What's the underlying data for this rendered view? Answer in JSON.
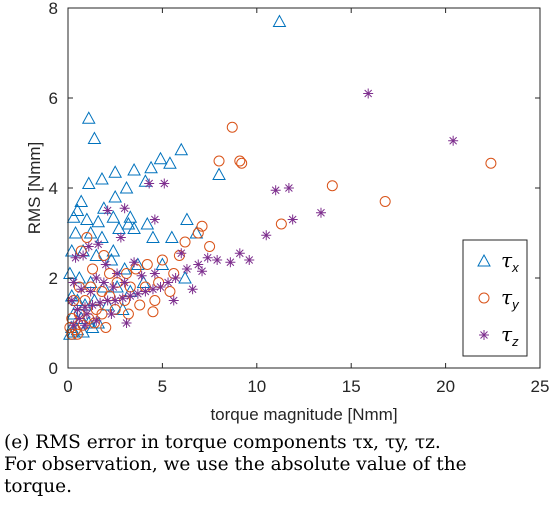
{
  "chart_data": {
    "type": "scatter",
    "xlabel": "torque magnitude [Nmm]",
    "ylabel": "RMS [Nmm]",
    "xlim": [
      0,
      25
    ],
    "ylim": [
      0,
      8
    ],
    "xticks": [
      "0",
      "5",
      "10",
      "15",
      "20",
      "25"
    ],
    "yticks": [
      "0",
      "2",
      "4",
      "6",
      "8"
    ],
    "grid": false,
    "legend_position": "bottom-right",
    "series": [
      {
        "name": "τx",
        "base": "τ",
        "sub": "x",
        "marker": "triangle",
        "color": "#0072BD",
        "points": [
          [
            11.2,
            7.7
          ],
          [
            1.1,
            5.55
          ],
          [
            1.4,
            5.1
          ],
          [
            4.9,
            4.65
          ],
          [
            6.0,
            4.85
          ],
          [
            5.4,
            4.55
          ],
          [
            4.4,
            4.45
          ],
          [
            3.5,
            4.4
          ],
          [
            2.5,
            4.35
          ],
          [
            1.8,
            4.2
          ],
          [
            1.1,
            4.1
          ],
          [
            0.7,
            3.7
          ],
          [
            0.5,
            3.5
          ],
          [
            2.5,
            3.8
          ],
          [
            3.1,
            4.0
          ],
          [
            4.1,
            4.15
          ],
          [
            8.0,
            4.3
          ],
          [
            0.3,
            3.35
          ],
          [
            1.0,
            3.3
          ],
          [
            1.6,
            3.25
          ],
          [
            1.9,
            3.55
          ],
          [
            2.4,
            3.35
          ],
          [
            3.3,
            3.35
          ],
          [
            4.2,
            3.2
          ],
          [
            6.3,
            3.3
          ],
          [
            0.4,
            3.0
          ],
          [
            1.2,
            3.0
          ],
          [
            1.8,
            2.9
          ],
          [
            2.7,
            3.1
          ],
          [
            3.5,
            3.1
          ],
          [
            3.2,
            3.2
          ],
          [
            4.5,
            2.9
          ],
          [
            5.5,
            2.9
          ],
          [
            6.8,
            3.0
          ],
          [
            0.2,
            2.6
          ],
          [
            0.8,
            2.6
          ],
          [
            1.5,
            2.5
          ],
          [
            2.3,
            2.4
          ],
          [
            3.0,
            2.2
          ],
          [
            2.4,
            2.6
          ],
          [
            3.7,
            2.3
          ],
          [
            5.0,
            2.3
          ],
          [
            6.2,
            2.0
          ],
          [
            0.1,
            2.1
          ],
          [
            0.6,
            2.0
          ],
          [
            1.2,
            1.9
          ],
          [
            1.9,
            1.8
          ],
          [
            2.6,
            1.8
          ],
          [
            3.3,
            1.7
          ],
          [
            4.0,
            1.9
          ],
          [
            0.2,
            1.6
          ],
          [
            0.5,
            1.5
          ],
          [
            0.9,
            1.4
          ],
          [
            1.4,
            1.5
          ],
          [
            2.1,
            1.4
          ],
          [
            2.9,
            1.3
          ],
          [
            0.3,
            1.2
          ],
          [
            0.7,
            1.1
          ],
          [
            1.1,
            1.0
          ],
          [
            1.6,
            1.0
          ],
          [
            0.2,
            0.9
          ],
          [
            0.5,
            0.85
          ],
          [
            0.1,
            0.75
          ],
          [
            0.3,
            0.8
          ],
          [
            0.8,
            0.8
          ],
          [
            1.3,
            0.9
          ]
        ]
      },
      {
        "name": "τy",
        "base": "τ",
        "sub": "y",
        "marker": "circle",
        "color": "#D95319",
        "points": [
          [
            22.4,
            4.55
          ],
          [
            8.7,
            5.35
          ],
          [
            9.1,
            4.6
          ],
          [
            9.2,
            4.55
          ],
          [
            8.0,
            4.6
          ],
          [
            14.0,
            4.05
          ],
          [
            16.8,
            3.7
          ],
          [
            11.3,
            3.2
          ],
          [
            7.1,
            3.15
          ],
          [
            6.9,
            3.0
          ],
          [
            7.5,
            2.7
          ],
          [
            6.2,
            2.8
          ],
          [
            5.9,
            2.5
          ],
          [
            5.0,
            2.4
          ],
          [
            4.2,
            2.3
          ],
          [
            3.6,
            2.2
          ],
          [
            3.1,
            2.1
          ],
          [
            2.2,
            2.1
          ],
          [
            1.3,
            2.2
          ],
          [
            1.0,
            2.9
          ],
          [
            0.7,
            2.6
          ],
          [
            1.9,
            2.5
          ],
          [
            5.6,
            2.1
          ],
          [
            4.8,
            1.9
          ],
          [
            4.1,
            1.8
          ],
          [
            3.3,
            1.8
          ],
          [
            2.6,
            1.9
          ],
          [
            1.8,
            1.7
          ],
          [
            1.2,
            1.8
          ],
          [
            0.6,
            1.8
          ],
          [
            0.3,
            1.5
          ],
          [
            0.9,
            1.5
          ],
          [
            1.5,
            1.3
          ],
          [
            2.2,
            1.6
          ],
          [
            3.0,
            1.5
          ],
          [
            3.8,
            1.4
          ],
          [
            4.6,
            1.5
          ],
          [
            5.4,
            1.7
          ],
          [
            0.2,
            1.1
          ],
          [
            0.6,
            1.2
          ],
          [
            1.1,
            1.1
          ],
          [
            1.8,
            1.2
          ],
          [
            2.5,
            1.3
          ],
          [
            3.2,
            1.2
          ],
          [
            4.5,
            1.25
          ],
          [
            0.1,
            0.9
          ],
          [
            0.4,
            0.85
          ],
          [
            0.8,
            0.95
          ],
          [
            1.4,
            1.0
          ],
          [
            2.0,
            0.9
          ],
          [
            0.2,
            0.75
          ],
          [
            0.5,
            0.75
          ]
        ]
      },
      {
        "name": "τz",
        "base": "τ",
        "sub": "z",
        "marker": "asterisk",
        "color": "#7E2F8E",
        "points": [
          [
            15.9,
            6.1
          ],
          [
            20.4,
            5.05
          ],
          [
            11.0,
            3.95
          ],
          [
            11.7,
            4.0
          ],
          [
            13.4,
            3.45
          ],
          [
            11.9,
            3.3
          ],
          [
            10.5,
            2.95
          ],
          [
            9.1,
            2.55
          ],
          [
            9.6,
            2.4
          ],
          [
            8.6,
            2.35
          ],
          [
            7.9,
            2.4
          ],
          [
            7.4,
            2.45
          ],
          [
            6.9,
            2.3
          ],
          [
            6.3,
            2.2
          ],
          [
            5.7,
            2.0
          ],
          [
            5.3,
            1.9
          ],
          [
            4.9,
            1.8
          ],
          [
            4.5,
            1.75
          ],
          [
            4.1,
            1.7
          ],
          [
            3.7,
            1.65
          ],
          [
            3.3,
            1.6
          ],
          [
            2.9,
            1.55
          ],
          [
            2.5,
            1.5
          ],
          [
            2.1,
            1.5
          ],
          [
            1.7,
            1.45
          ],
          [
            1.3,
            1.4
          ],
          [
            0.9,
            1.35
          ],
          [
            0.5,
            1.3
          ],
          [
            5.1,
            4.1
          ],
          [
            4.3,
            4.1
          ],
          [
            3.0,
            3.55
          ],
          [
            2.1,
            3.5
          ],
          [
            2.8,
            2.9
          ],
          [
            1.6,
            2.75
          ],
          [
            1.1,
            2.7
          ],
          [
            0.8,
            2.5
          ],
          [
            0.4,
            2.45
          ],
          [
            2.0,
            2.3
          ],
          [
            2.6,
            2.1
          ],
          [
            3.5,
            2.35
          ],
          [
            4.6,
            2.1
          ],
          [
            3.9,
            2.05
          ],
          [
            1.5,
            2.0
          ],
          [
            0.3,
            1.9
          ],
          [
            0.7,
            1.75
          ],
          [
            1.2,
            1.7
          ],
          [
            1.9,
            1.9
          ],
          [
            2.4,
            1.8
          ],
          [
            3.0,
            1.9
          ],
          [
            5.6,
            1.5
          ],
          [
            6.6,
            1.75
          ],
          [
            0.2,
            1.5
          ],
          [
            0.6,
            1.1
          ],
          [
            1.0,
            1.2
          ],
          [
            1.5,
            1.05
          ],
          [
            2.3,
            1.2
          ],
          [
            3.1,
            1.0
          ],
          [
            0.9,
            0.95
          ],
          [
            0.3,
            0.95
          ],
          [
            4.6,
            3.3
          ],
          [
            6.0,
            2.55
          ],
          [
            7.1,
            2.15
          ]
        ]
      }
    ]
  },
  "caption": "(e) RMS error in torque components τx, τy, τz.\nFor observation, we use the absolute value of the\ntorque."
}
